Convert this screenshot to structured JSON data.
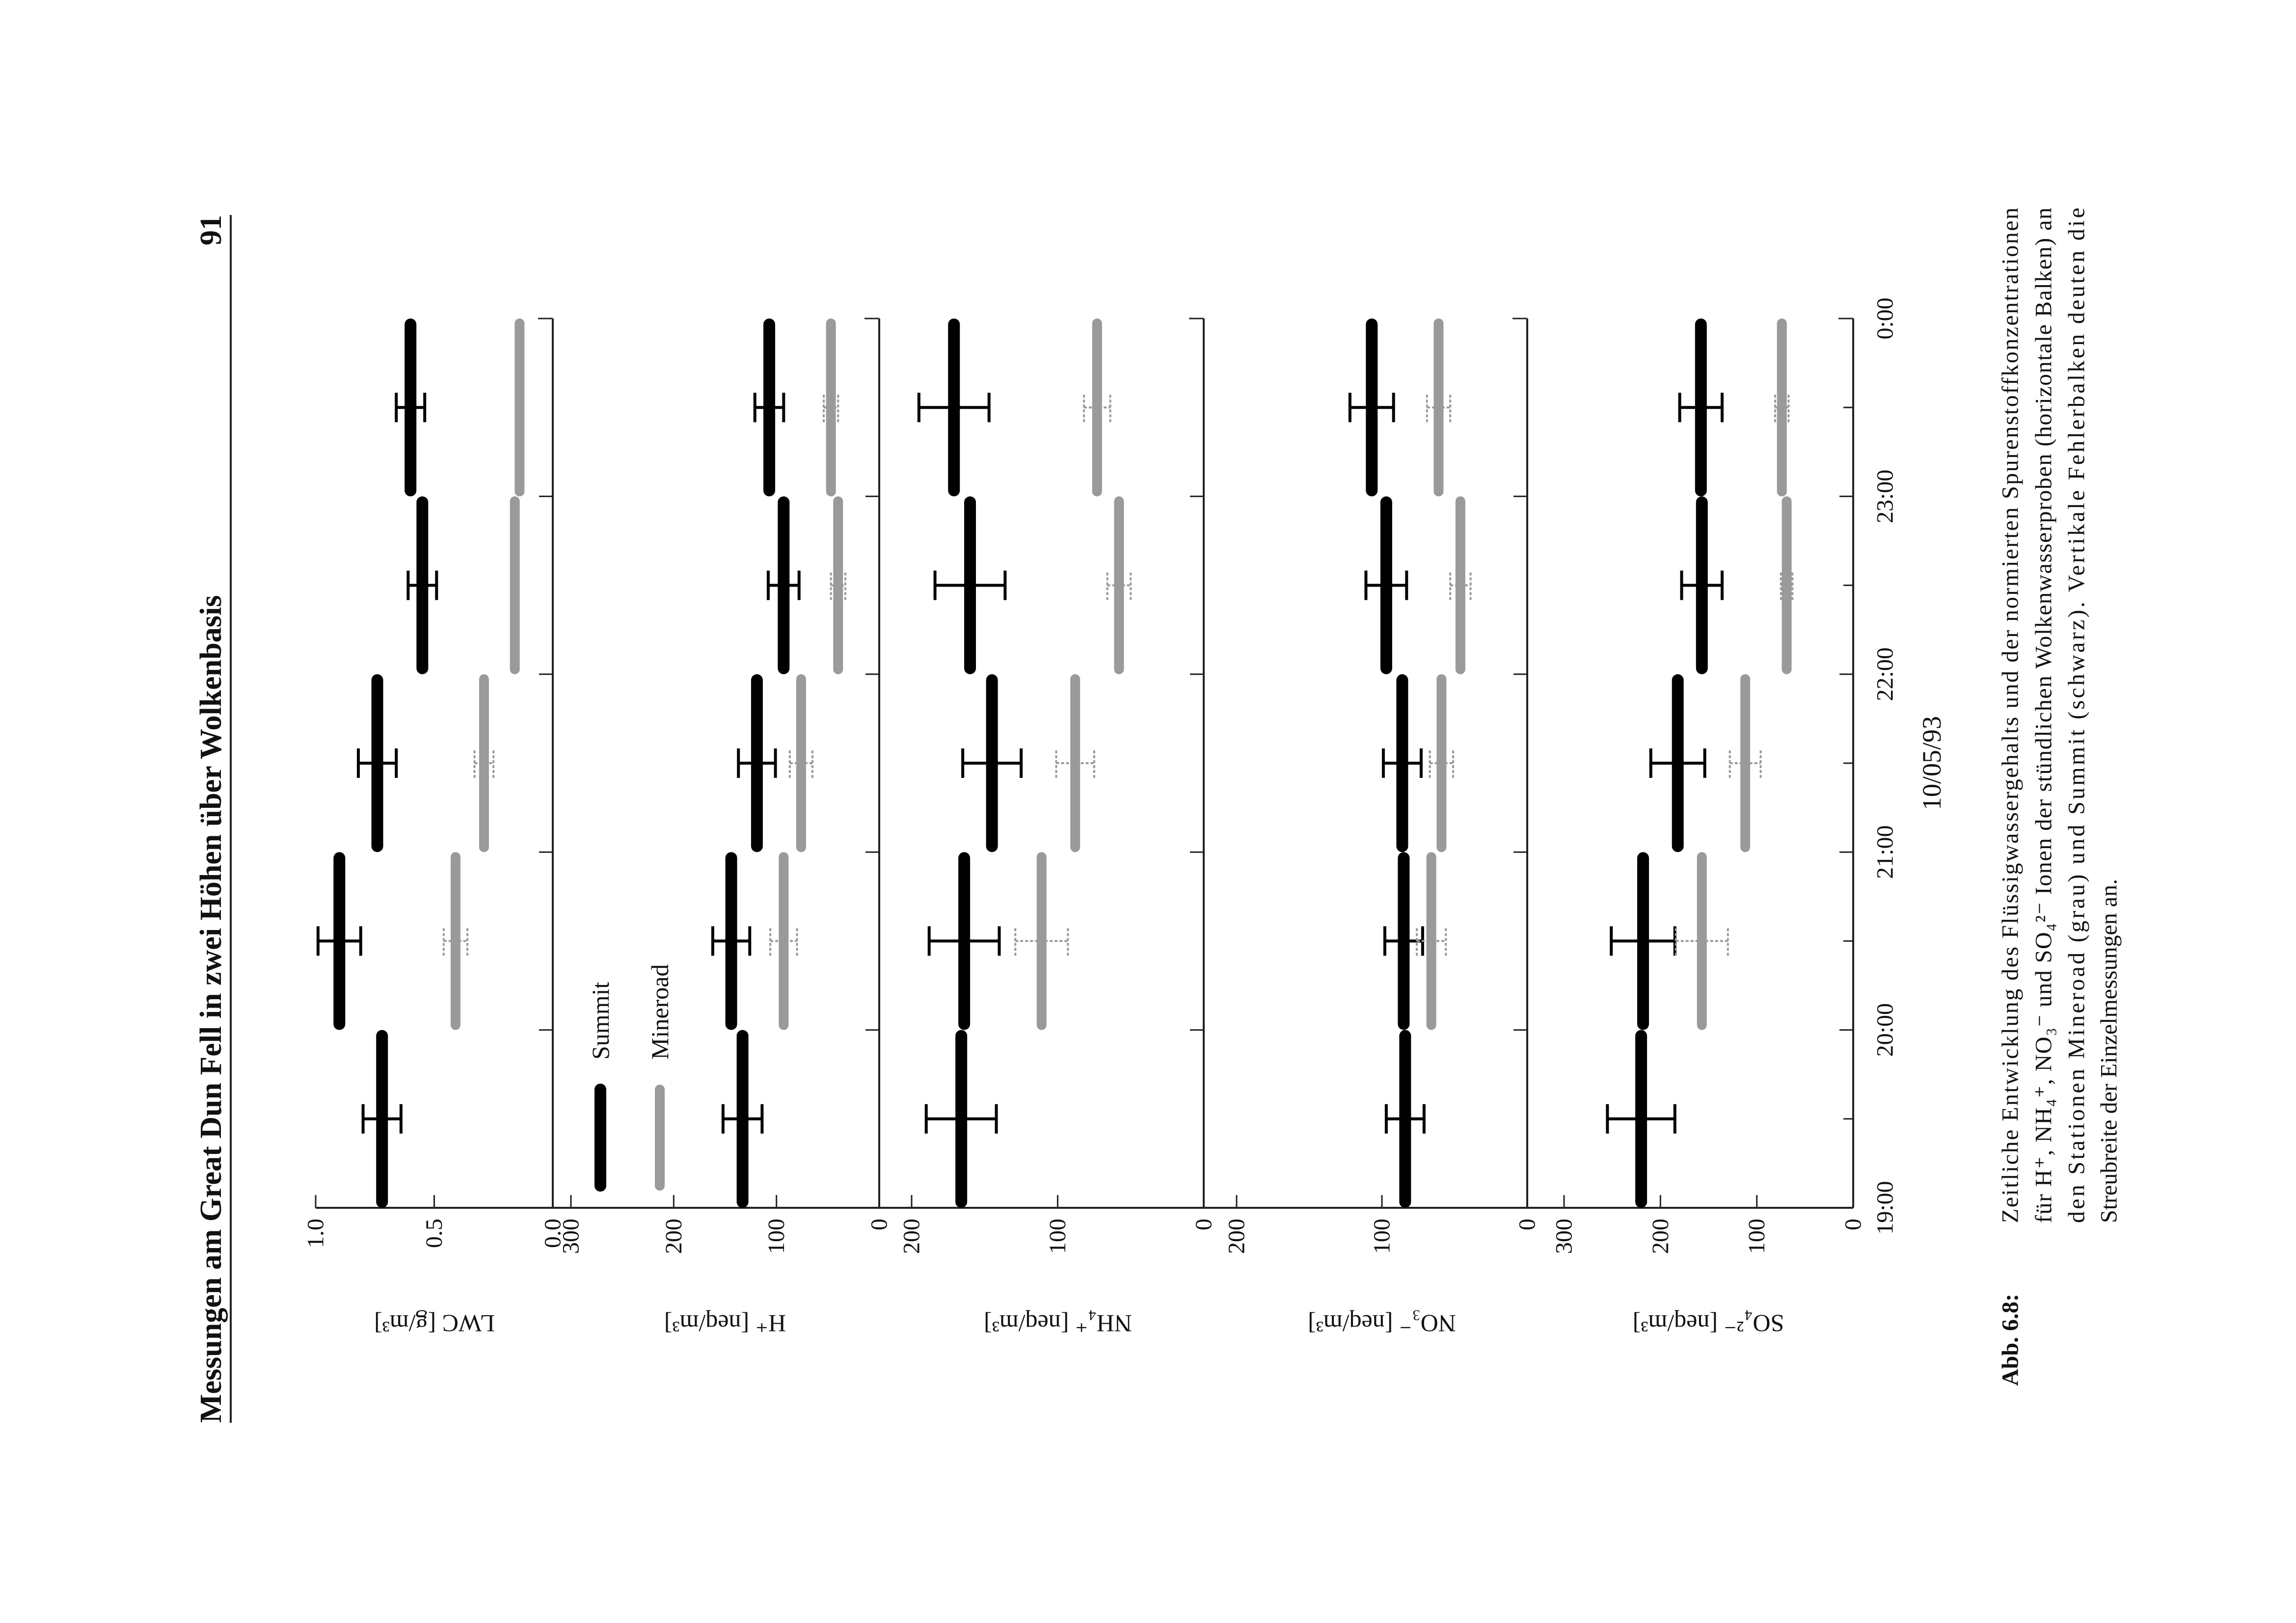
{
  "header": {
    "title": "Messungen am Great Dun Fell in zwei Höhen über Wolkenbasis",
    "page_number": "91"
  },
  "caption": {
    "label": "Abb. 6.8:",
    "lines": [
      "Zeitliche Entwicklung des Flüssigwassergehalts und der normierten Spurenstoffkonzentrationen",
      "für H⁺, NH₄⁺, NO₃⁻ und SO₄²⁻ Ionen der stündlichen Wolkenwasserproben (horizontale Balken) an",
      "den Stationen Mineroad (grau) und Summit (schwarz). Vertikale Fehlerbalken deuten die",
      "Streubreite der Einzelmessungen an."
    ]
  },
  "time_axis": {
    "ticks": [
      "19:00",
      "20:00",
      "21:00",
      "22:00",
      "23:00",
      "0:00"
    ],
    "label": "10/05/93"
  },
  "legend": [
    {
      "name": "Summit",
      "color": "#000000"
    },
    {
      "name": "Mineroad",
      "color": "#9a9a9a"
    }
  ],
  "chart_data": [
    {
      "type": "bar",
      "y_label": "LWC [g/m³]",
      "ylim": [
        0,
        1
      ],
      "yticks": [
        {
          "value": 0,
          "label": "0.0"
        },
        0.5,
        {
          "value": 1,
          "label": "1.0"
        }
      ],
      "series": [
        {
          "color": "#000000",
          "values": [
            0.72,
            0.9,
            0.74,
            0.55,
            0.6
          ],
          "errors": [
            0.08,
            0.09,
            0.08,
            0.06,
            0.06
          ]
        },
        {
          "color": "#9a9a9a",
          "values": [
            null,
            0.41,
            0.29,
            0.16,
            0.14
          ],
          "errors": [
            null,
            0.05,
            0.04,
            null,
            null
          ]
        }
      ]
    },
    {
      "type": "bar",
      "y_label": "H⁺ [neq/m³]",
      "ylim": [
        0,
        300
      ],
      "yticks": [
        0,
        100,
        200,
        300
      ],
      "series": [
        {
          "color": "#000000",
          "values": [
            133,
            144,
            119,
            93,
            107
          ],
          "errors": [
            19,
            18,
            18,
            15,
            14
          ]
        },
        {
          "color": "#9a9a9a",
          "values": [
            null,
            93,
            76,
            40,
            47
          ],
          "errors": [
            null,
            13,
            11,
            7,
            7
          ]
        }
      ]
    },
    {
      "type": "bar",
      "y_label": "NH₄⁺ [neq/m³]",
      "ylim": [
        0,
        200
      ],
      "yticks": [
        0,
        100,
        200
      ],
      "series": [
        {
          "color": "#000000",
          "values": [
            166,
            164,
            145,
            160,
            171
          ],
          "errors": [
            24,
            24,
            20,
            24,
            24
          ]
        },
        {
          "color": "#9a9a9a",
          "values": [
            null,
            111,
            88,
            58,
            73
          ],
          "errors": [
            null,
            18,
            13,
            8,
            9
          ]
        }
      ]
    },
    {
      "type": "bar",
      "y_label": "NO₃⁻ [neq/m³]",
      "ylim": [
        0,
        200
      ],
      "yticks": [
        0,
        100,
        200
      ],
      "series": [
        {
          "color": "#000000",
          "values": [
            84,
            85,
            86,
            97,
            107
          ],
          "errors": [
            13,
            13,
            13,
            14,
            15
          ]
        },
        {
          "color": "#9a9a9a",
          "values": [
            null,
            66,
            59,
            46,
            61
          ],
          "errors": [
            null,
            10,
            8,
            7,
            8
          ]
        }
      ]
    },
    {
      "type": "bar",
      "y_label": "SO₄²⁻ [neq/m³]",
      "ylim": [
        0,
        300
      ],
      "yticks": [
        0,
        100,
        200,
        300
      ],
      "series": [
        {
          "color": "#000000",
          "values": [
            220,
            218,
            182,
            157,
            158
          ],
          "errors": [
            35,
            33,
            28,
            21,
            22
          ]
        },
        {
          "color": "#9a9a9a",
          "values": [
            null,
            157,
            112,
            69,
            74
          ],
          "errors": [
            null,
            27,
            16,
            6,
            7
          ]
        }
      ]
    }
  ]
}
